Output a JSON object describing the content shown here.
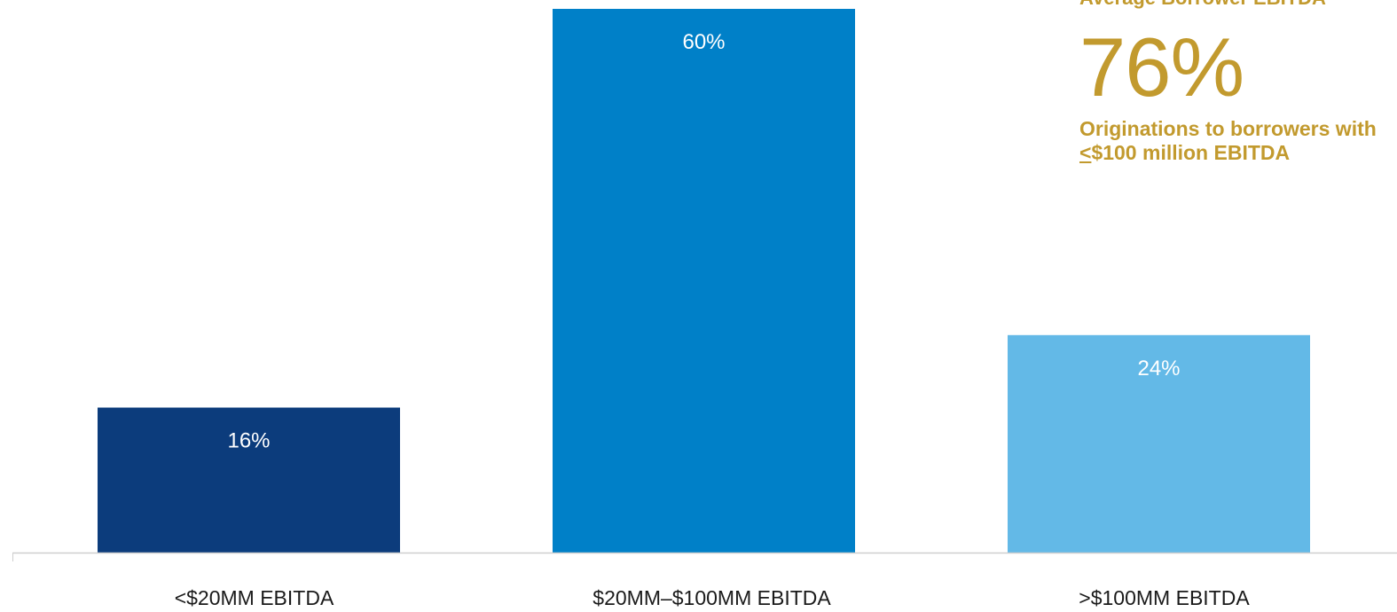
{
  "chart_data": {
    "type": "bar",
    "categories": [
      "<$20MM EBITDA",
      "$20MM–$100MM EBITDA",
      ">$100MM EBITDA"
    ],
    "values": [
      16,
      60,
      24
    ],
    "data_labels": [
      "16%",
      "60%",
      "24%"
    ],
    "colors": [
      "#0c3c7c",
      "#0080c8",
      "#63b9e7"
    ],
    "ylim": [
      0,
      60
    ],
    "grid": false,
    "legend": "none"
  },
  "callout": {
    "heading": "Average Borrower EBITDA",
    "big_value": "76%",
    "description_line1": "Originations to borrowers with",
    "description_line2_symbol": "<",
    "description_line2_rest": "$100 million EBITDA",
    "color": "#c29a2e"
  }
}
